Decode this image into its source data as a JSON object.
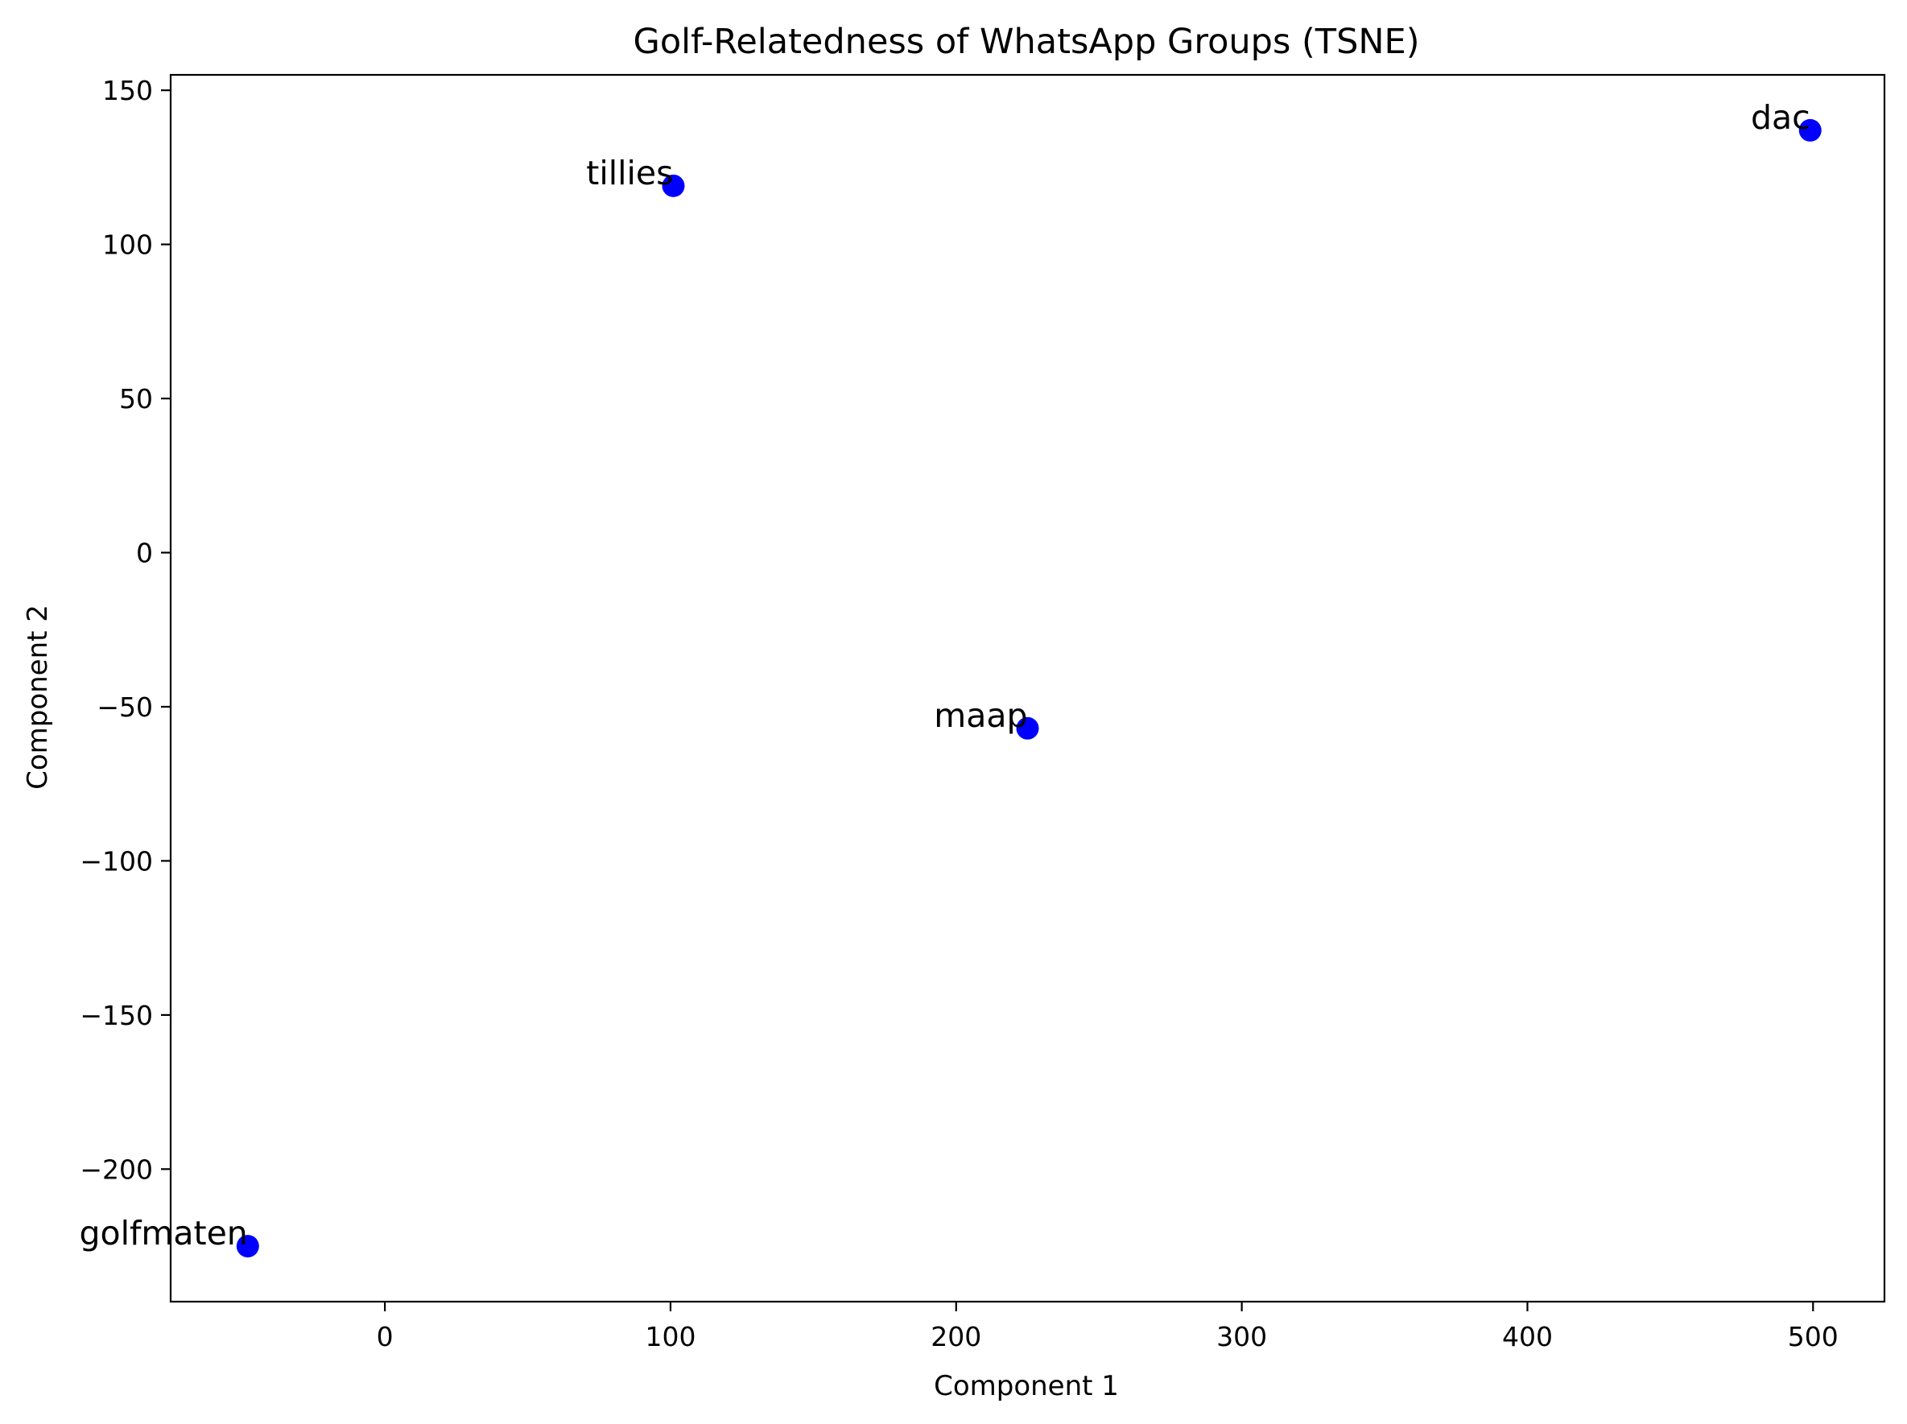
{
  "chart_data": {
    "type": "scatter",
    "title": "Golf-Relatedness of WhatsApp Groups (TSNE)",
    "xlabel": "Component 1",
    "ylabel": "Component 2",
    "xlim": [
      -75,
      525
    ],
    "ylim": [
      -243,
      155
    ],
    "xticks": [
      0,
      100,
      200,
      300,
      400,
      500
    ],
    "yticks": [
      150,
      100,
      50,
      0,
      -50,
      -100,
      -150,
      -200
    ],
    "xtick_labels": [
      "0",
      "100",
      "200",
      "300",
      "400",
      "500"
    ],
    "ytick_labels": [
      "150",
      "100",
      "50",
      "0",
      "−50",
      "−100",
      "−150",
      "−200"
    ],
    "grid": false,
    "marker_color": "#0000ff",
    "points": [
      {
        "label": "tillies",
        "x": 101,
        "y": 119
      },
      {
        "label": "dac",
        "x": 499,
        "y": 137
      },
      {
        "label": "maap",
        "x": 225,
        "y": -57
      },
      {
        "label": "golfmaten",
        "x": -48,
        "y": -225
      }
    ]
  }
}
